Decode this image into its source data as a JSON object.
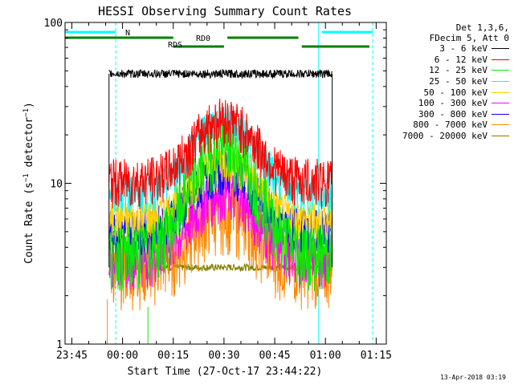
{
  "chart_data": {
    "type": "line",
    "title": "HESSI Observing Summary Count Rates",
    "xlabel": "Start Time (27-Oct-17 23:44:22)",
    "ylabel": "Count Rate (s^-1 detector^-1)",
    "ylabel_main": "Count Rate (s",
    "ylabel_sup1": "−1",
    "ylabel_mid": " detector",
    "ylabel_sup2": "−1",
    "ylabel_end": ")",
    "y_scale": "log",
    "ylim": [
      1,
      100
    ],
    "xlim_minutes": [
      -2,
      93
    ],
    "x_ticks": [
      {
        "label": "23:45",
        "minutes": 0
      },
      {
        "label": "00:00",
        "minutes": 15
      },
      {
        "label": "00:15",
        "minutes": 30
      },
      {
        "label": "00:30",
        "minutes": 45
      },
      {
        "label": "00:45",
        "minutes": 60
      },
      {
        "label": "01:00",
        "minutes": 75
      },
      {
        "label": "01:15",
        "minutes": 90
      }
    ],
    "y_ticks": [
      {
        "label": "100",
        "value": 100
      },
      {
        "label": "10",
        "value": 10
      },
      {
        "label": "1",
        "value": 1
      }
    ],
    "legend_header": [
      "Det 1,3,6,",
      "FDecim 5, Att 0"
    ],
    "series": [
      {
        "name": "3 - 6 keV",
        "color": "#000000",
        "base": 48,
        "peak": 0
      },
      {
        "name": "6 - 12 keV",
        "color": "#ff0000",
        "base": 10.5,
        "peak": 15
      },
      {
        "name": "12 - 25 keV",
        "color": "#00ee00",
        "base": 3.8,
        "peak": 13
      },
      {
        "name": "25 - 50 keV",
        "color": "#00ffff",
        "base": 8.8,
        "peak": 16
      },
      {
        "name": "50 - 100 keV",
        "color": "#ffd000",
        "base": 6,
        "peak": 8
      },
      {
        "name": "100 - 300 keV",
        "color": "#ff00ff",
        "base": 3.5,
        "peak": 5.5
      },
      {
        "name": "300 - 800 keV",
        "color": "#0000ff",
        "base": 5.2,
        "peak": 7
      },
      {
        "name": "800 - 7000 keV",
        "color": "#ff8800",
        "base": 3.2,
        "peak": 3.8
      },
      {
        "name": "7000 - 20000 keV",
        "color": "#808000",
        "base": 3.0,
        "peak": 0
      }
    ],
    "annotations": {
      "N": {
        "label": "N",
        "color": "#00ffff"
      },
      "RD0": {
        "label": "RD0",
        "color": "#007f00"
      },
      "RDS": {
        "label": "RDS",
        "color": "#007f00"
      }
    }
  },
  "timestamp": "13-Apr-2018 03:19"
}
